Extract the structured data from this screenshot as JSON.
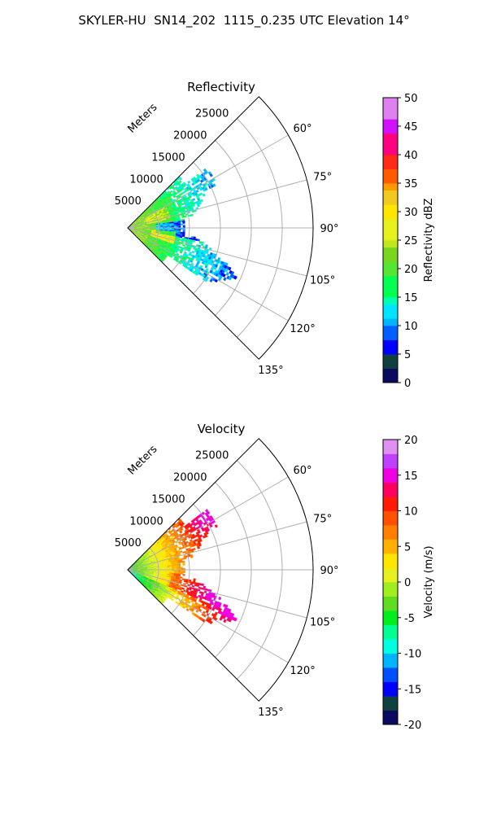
{
  "figure": {
    "title": "SKYLER-HU  SN14_202  1115_0.235 UTC Elevation 14°"
  },
  "chart_data": [
    {
      "type": "heatmap",
      "subtype": "polar-sector-ppi",
      "title": "Reflectivity",
      "radial_label": "Meters",
      "radial_ticks": [
        "5000",
        "10000",
        "15000",
        "20000",
        "25000"
      ],
      "radial_range_m": [
        0,
        30000
      ],
      "angle_ticks": [
        "60°",
        "75°",
        "90°",
        "105°",
        "120°",
        "135°"
      ],
      "angle_range_deg": [
        45,
        135
      ],
      "grid": true,
      "colorbar": {
        "label": "Reflectivity dBZ",
        "ticks": [
          "0",
          "5",
          "10",
          "15",
          "20",
          "25",
          "30",
          "35",
          "40",
          "45",
          "50"
        ],
        "range": [
          0,
          50
        ],
        "colormap": "NWSRef"
      },
      "colors": {
        "weak": "#00e5ff",
        "light": "#55e633",
        "moderate": "#bde61c",
        "strong": "#f2c91d",
        "heavy": "#ff2a1a"
      }
    },
    {
      "type": "heatmap",
      "subtype": "polar-sector-ppi",
      "title": "Velocity",
      "radial_label": "Meters",
      "radial_ticks": [
        "5000",
        "10000",
        "15000",
        "20000",
        "25000"
      ],
      "radial_range_m": [
        0,
        30000
      ],
      "angle_ticks": [
        "60°",
        "75°",
        "90°",
        "105°",
        "120°",
        "135°"
      ],
      "angle_range_deg": [
        45,
        135
      ],
      "grid": true,
      "colorbar": {
        "label": "Velocity (m/s)",
        "ticks": [
          "-20",
          "-15",
          "-10",
          "-5",
          "0",
          "5",
          "10",
          "15",
          "20"
        ],
        "range": [
          -20,
          20
        ],
        "colormap": "NWSVel"
      },
      "colors": {
        "near": "#66dd55",
        "inner": "#ccee22",
        "yellow": "#ffe600",
        "orange": "#ff9a00",
        "red": "#ff2a00",
        "magenta": "#e6008a"
      }
    }
  ]
}
